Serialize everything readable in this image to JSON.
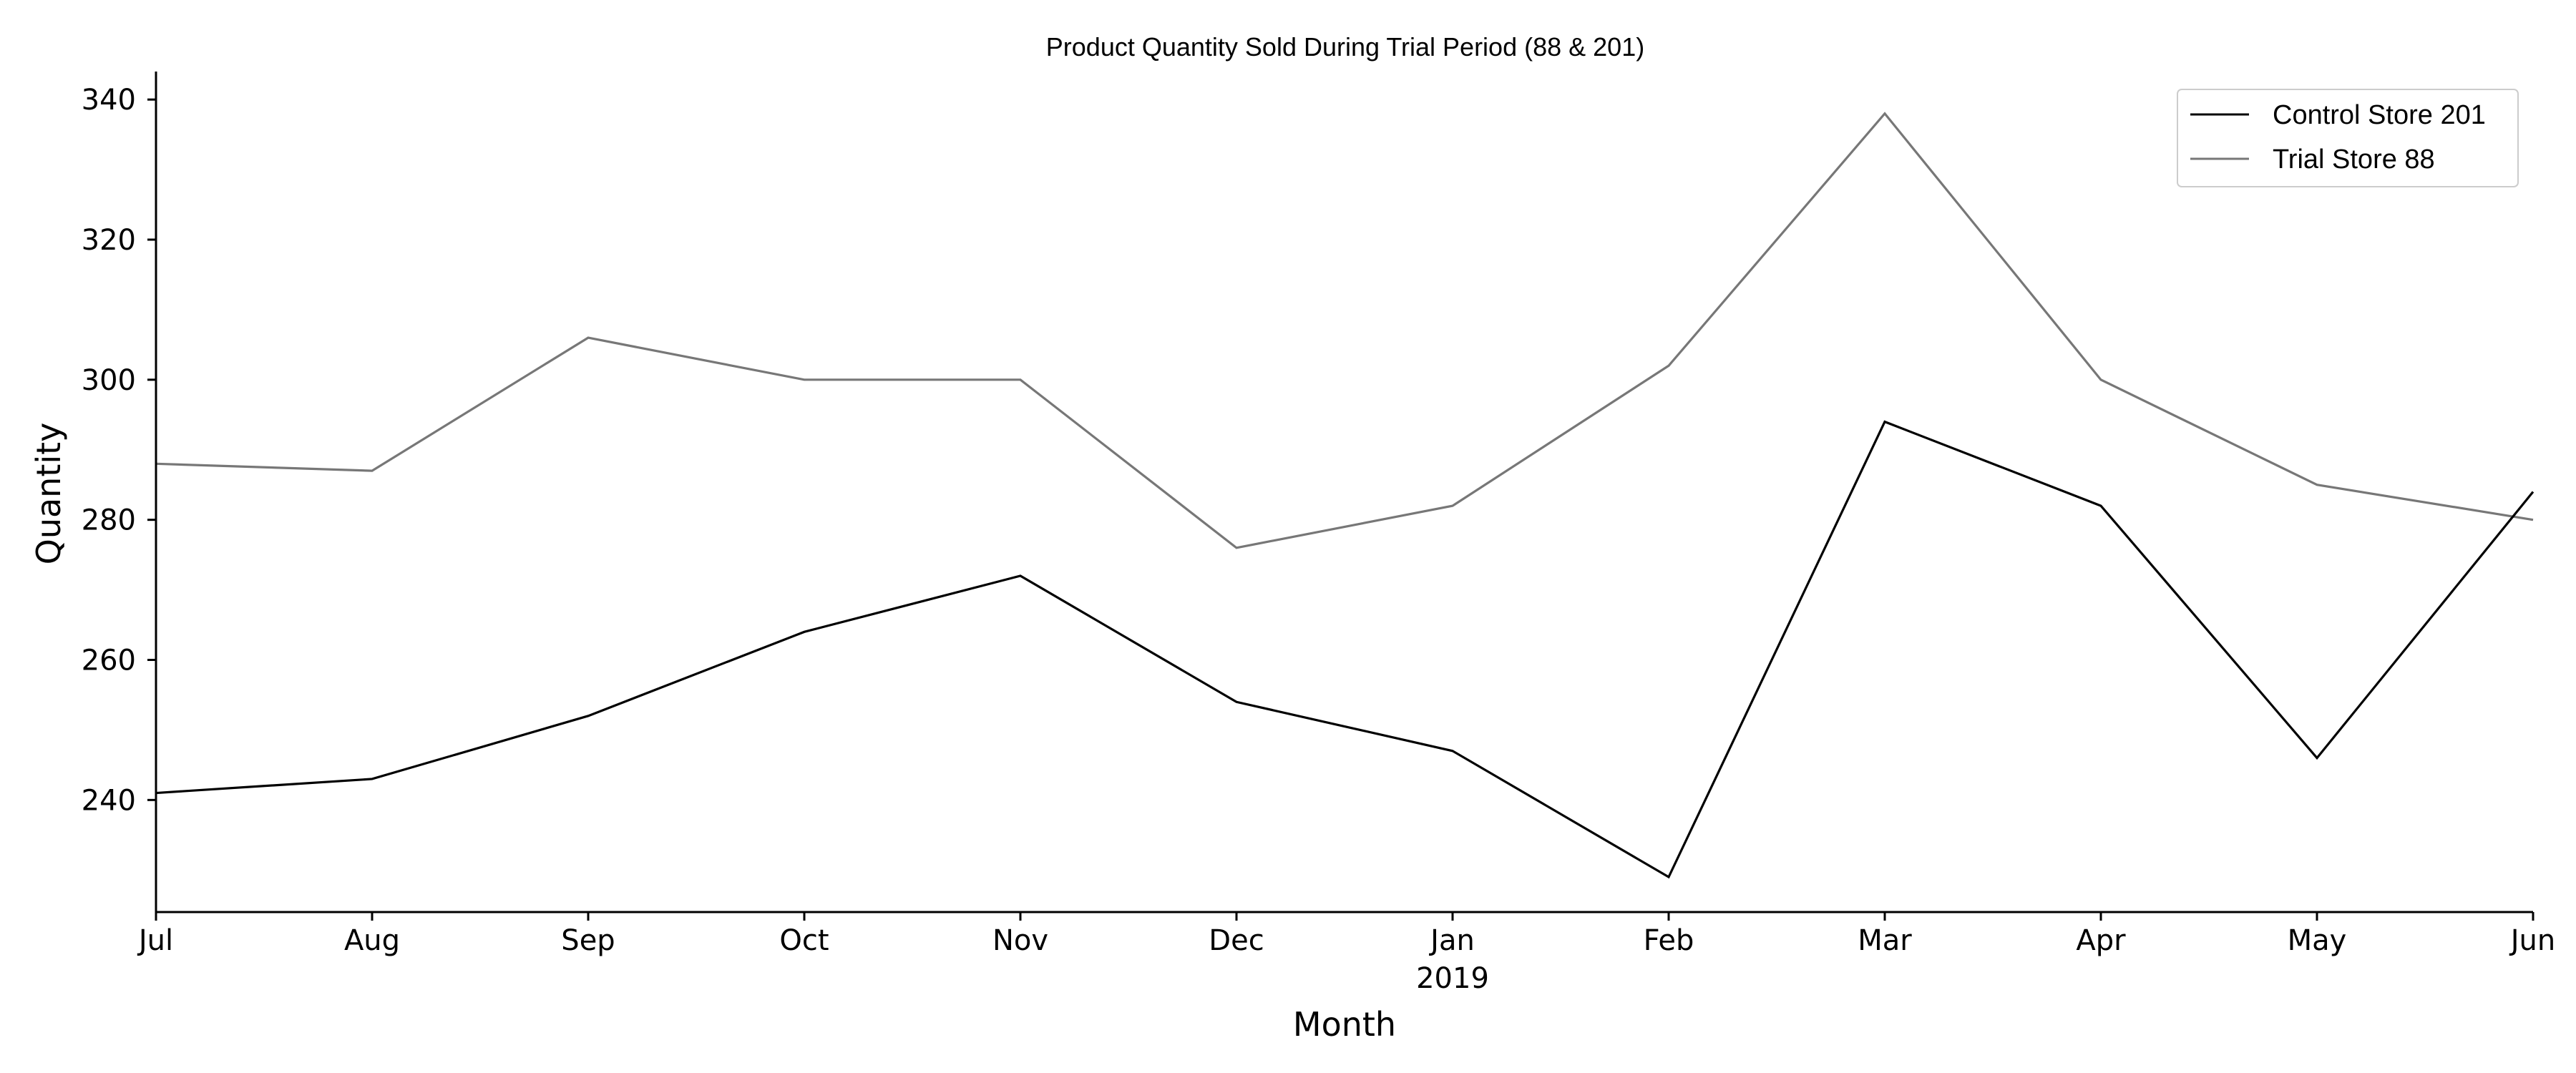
{
  "chart_data": {
    "type": "line",
    "title": "Product Quantity Sold During Trial Period (88 & 201)",
    "xlabel": "Month",
    "ylabel": "Quantity",
    "categories": [
      "Jul",
      "Aug",
      "Sep",
      "Oct",
      "Nov",
      "Dec",
      "Jan",
      "Feb",
      "Mar",
      "Apr",
      "May",
      "Jun"
    ],
    "year_label": "2019",
    "year_label_under": "Jan",
    "ylim": [
      224,
      344
    ],
    "yticks": [
      240,
      260,
      280,
      300,
      320,
      340
    ],
    "grid": false,
    "legend_position": "top-right",
    "series": [
      {
        "name": "Control Store 201",
        "color": "#000000",
        "values": [
          241,
          243,
          252,
          264,
          272,
          254,
          247,
          229,
          294,
          282,
          246,
          284
        ]
      },
      {
        "name": "Trial Store 88",
        "color": "#777777",
        "values": [
          288,
          287,
          306,
          300,
          300,
          276,
          282,
          302,
          338,
          300,
          285,
          280
        ]
      }
    ]
  }
}
